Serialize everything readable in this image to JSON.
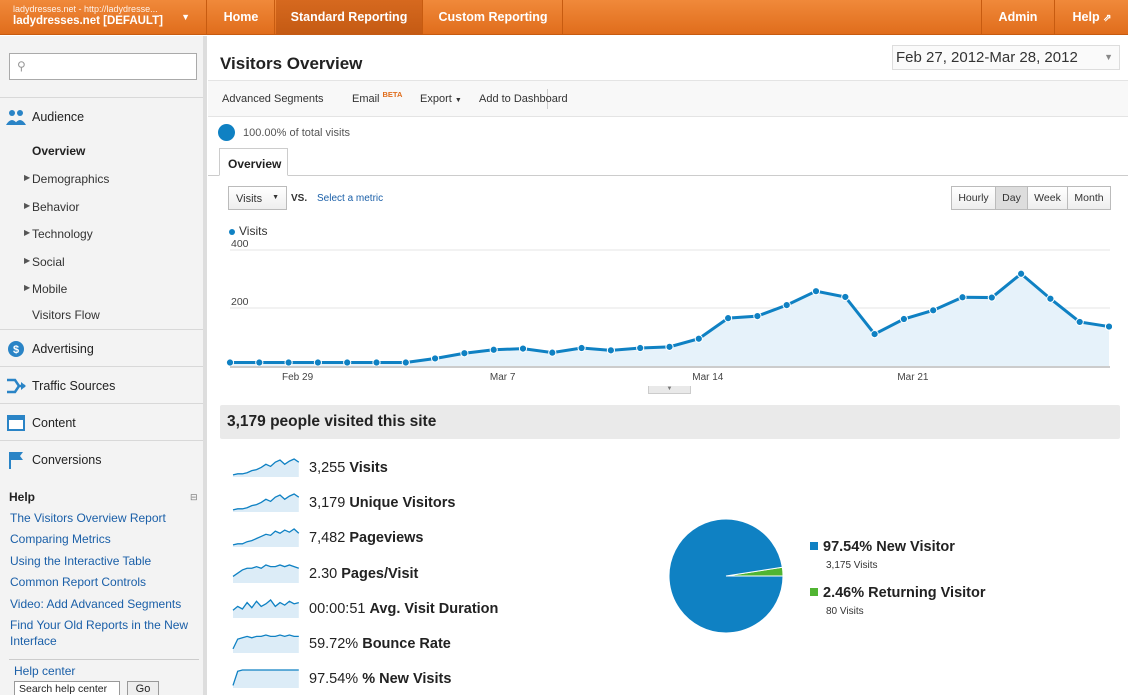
{
  "account": {
    "url": "ladydresses.net - http://ladydresse...",
    "name": "ladydresses.net [DEFAULT]"
  },
  "nav": {
    "home": "Home",
    "standard": "Standard Reporting",
    "custom": "Custom Reporting",
    "admin": "Admin",
    "help": "Help"
  },
  "sidebar": {
    "sections": [
      "Audience",
      "Advertising",
      "Traffic Sources",
      "Content",
      "Conversions"
    ],
    "audience_items": [
      "Overview",
      "Demographics",
      "Behavior",
      "Technology",
      "Social",
      "Mobile",
      "Visitors Flow"
    ],
    "help_title": "Help",
    "help_links": [
      "The Visitors Overview Report",
      "Comparing Metrics",
      "Using the Interactive Table",
      "Common Report Controls",
      "Video: Add Advanced Segments",
      "Find Your Old Reports in the New Interface"
    ],
    "help_center": "Help center",
    "help_search": "Search help center",
    "go": "Go"
  },
  "page": {
    "title": "Visitors Overview",
    "date_start": "Feb 27, 2012",
    "date_sep": "-",
    "date_end": "Mar 28, 2012"
  },
  "toolbar": {
    "segments": "Advanced Segments",
    "email": "Email",
    "beta": "BETA",
    "export": "Export",
    "dashboard": "Add to Dashboard"
  },
  "percent_visits": "100.00% of total visits",
  "tab": "Overview",
  "metric": {
    "selected": "Visits",
    "vs": "VS.",
    "select": "Select a metric"
  },
  "granularity": [
    "Hourly",
    "Day",
    "Week",
    "Month"
  ],
  "granularity_selected": "Day",
  "chart_data": {
    "type": "area",
    "series": [
      {
        "name": "Visits",
        "values": [
          12,
          12,
          12,
          12,
          12,
          12,
          12,
          26,
          44,
          56,
          60,
          46,
          62,
          54,
          62,
          66,
          94,
          165,
          172,
          210,
          258,
          238,
          110,
          162,
          192,
          237,
          236,
          318,
          232,
          152,
          136
        ]
      }
    ],
    "x_tick_labels": [
      {
        "index": 2,
        "label": "Feb 29"
      },
      {
        "index": 9,
        "label": "Mar 7"
      },
      {
        "index": 16,
        "label": "Mar 14"
      },
      {
        "index": 23,
        "label": "Mar 21"
      }
    ],
    "y_ticks": [
      200,
      400
    ],
    "ylim": [
      0,
      400
    ],
    "color": "#0f81c3"
  },
  "summary": "3,179 people visited this site",
  "metrics": [
    {
      "value": "3,255",
      "label": "Visits",
      "spark": [
        2,
        3,
        3,
        4,
        6,
        7,
        9,
        12,
        10,
        14,
        16,
        12,
        15,
        17,
        14
      ]
    },
    {
      "value": "3,179",
      "label": "Unique Visitors",
      "spark": [
        2,
        3,
        3,
        4,
        6,
        7,
        9,
        12,
        10,
        14,
        16,
        12,
        15,
        17,
        14
      ]
    },
    {
      "value": "7,482",
      "label": "Pageviews",
      "spark": [
        2,
        3,
        3,
        5,
        6,
        8,
        10,
        12,
        11,
        15,
        13,
        16,
        14,
        17,
        13
      ]
    },
    {
      "value": "2.30",
      "label": "Pages/Visit",
      "spark": [
        4,
        6,
        8,
        9,
        9,
        10,
        9,
        11,
        10,
        10,
        11,
        10,
        11,
        10,
        9
      ]
    },
    {
      "value": "00:00:51",
      "label": "Avg. Visit Duration",
      "spark": [
        6,
        9,
        7,
        12,
        8,
        13,
        9,
        11,
        14,
        9,
        12,
        10,
        13,
        11,
        12
      ]
    },
    {
      "value": "59.72%",
      "label": "Bounce Rate",
      "spark": [
        3,
        10,
        11,
        12,
        11,
        12,
        12,
        13,
        12,
        12,
        13,
        12,
        13,
        12,
        12
      ]
    },
    {
      "value": "97.54%",
      "label": "% New Visits",
      "spark": [
        2,
        13,
        14,
        14,
        14,
        14,
        14,
        14,
        14,
        14,
        14,
        14,
        14,
        14,
        14
      ]
    }
  ],
  "pie": {
    "slices": [
      {
        "pct": "97.54%",
        "label": "New Visitor",
        "count": "3,175 Visits",
        "value": 97.54,
        "color": "#0f81c3"
      },
      {
        "pct": "2.46%",
        "label": "Returning Visitor",
        "count": "80 Visits",
        "value": 2.46,
        "color": "#50b432"
      }
    ]
  }
}
